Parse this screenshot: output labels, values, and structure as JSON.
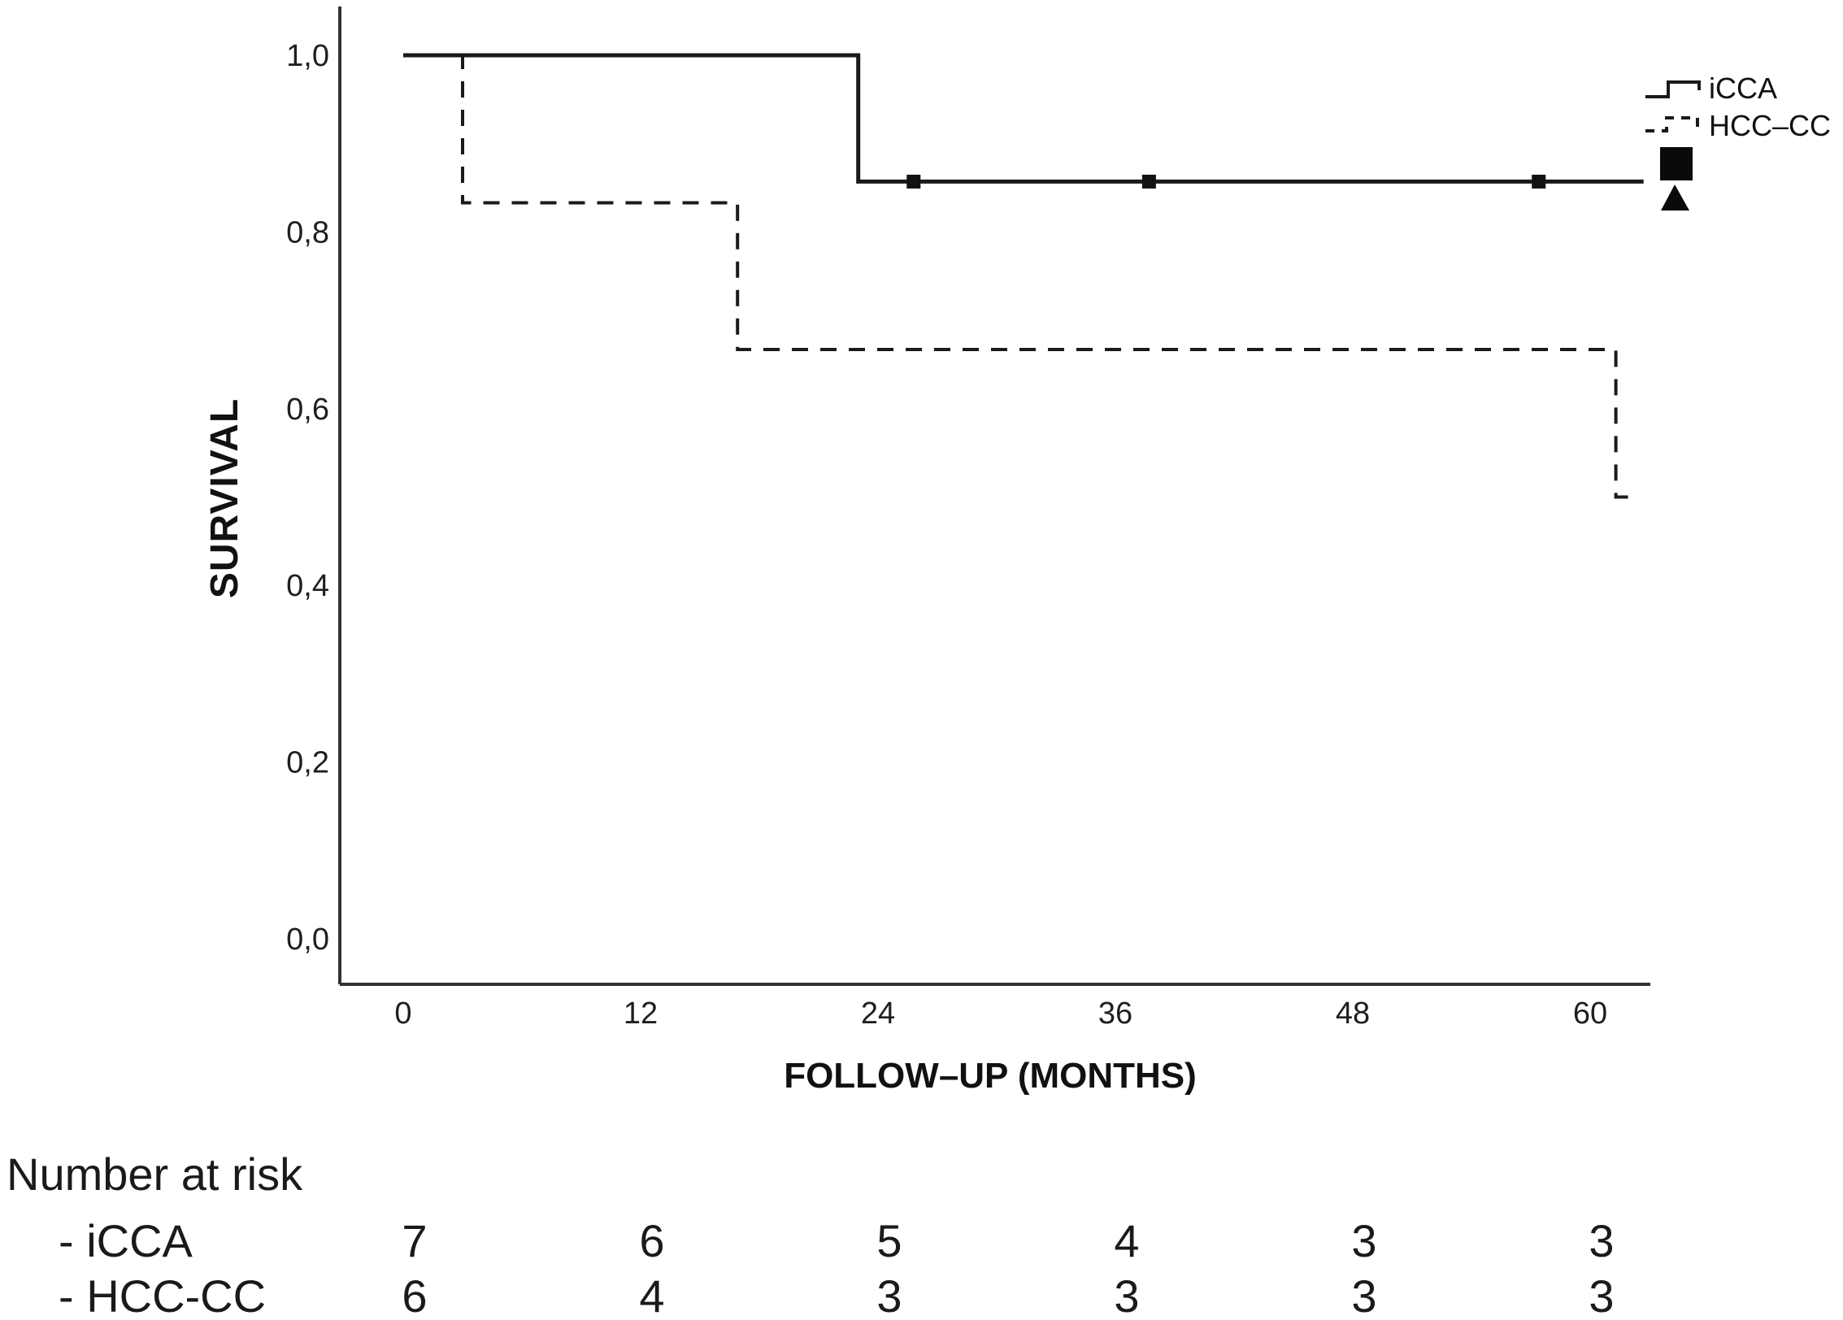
{
  "figure": {
    "background": "#ffffff",
    "line_color": "#1a1a1a",
    "axis_color": "#333333"
  },
  "chart_data": {
    "type": "line",
    "subtype": "kaplan-meier-step",
    "title": "",
    "xlabel": "FOLLOW–UP (MONTHS)",
    "ylabel": "SURVIVAL",
    "grid": "off",
    "x_axis": {
      "ticks": [
        {
          "value": 0,
          "label": "0"
        },
        {
          "value": 12,
          "label": "12"
        },
        {
          "value": 24,
          "label": "24"
        },
        {
          "value": 36,
          "label": "36"
        },
        {
          "value": 48,
          "label": "48"
        },
        {
          "value": 60,
          "label": "60"
        }
      ],
      "range_months": [
        -3.2,
        63.1
      ]
    },
    "y_axis": {
      "decimal_style": "comma",
      "ticks": [
        {
          "value": 1.0,
          "label": "1,0"
        },
        {
          "value": 0.8,
          "label": "0,8"
        },
        {
          "value": 0.6,
          "label": "0,6"
        },
        {
          "value": 0.4,
          "label": "0,4"
        },
        {
          "value": 0.2,
          "label": "0,2"
        },
        {
          "value": 0.0,
          "label": "0,0"
        }
      ],
      "range": [
        -0.052,
        1.055
      ]
    },
    "legend": {
      "position": "top-right",
      "entries": [
        {
          "label": "iCCA",
          "line_style": "solid"
        },
        {
          "label": "HCC–CC",
          "line_style": "dashed"
        }
      ],
      "censor_markers": [
        {
          "shape": "square"
        },
        {
          "shape": "triangle"
        }
      ]
    },
    "series": [
      {
        "name": "iCCA",
        "line_style": "solid",
        "steps": [
          [
            0,
            1.0
          ],
          [
            23,
            1.0
          ],
          [
            23,
            0.857
          ],
          [
            62.7,
            0.857
          ]
        ],
        "censored_points": [
          [
            25.8,
            0.857
          ],
          [
            37.7,
            0.857
          ],
          [
            57.4,
            0.857
          ]
        ],
        "censor_marker": "square"
      },
      {
        "name": "HCC-CC",
        "line_style": "dashed",
        "steps": [
          [
            0,
            1.0
          ],
          [
            3,
            1.0
          ],
          [
            3,
            0.833
          ],
          [
            16.9,
            0.833
          ],
          [
            16.9,
            0.667
          ],
          [
            61.3,
            0.667
          ],
          [
            61.3,
            0.5
          ],
          [
            62.4,
            0.5
          ]
        ],
        "censored_points": [],
        "censor_marker": "triangle"
      }
    ],
    "number_at_risk": {
      "label": "Number at risk",
      "time_points": [
        0,
        12,
        24,
        36,
        48,
        60
      ],
      "rows": [
        {
          "label": "- iCCA",
          "values": [
            7,
            6,
            5,
            4,
            3,
            3
          ]
        },
        {
          "label": "- HCC-CC",
          "values": [
            6,
            4,
            3,
            3,
            3,
            3
          ]
        }
      ]
    }
  }
}
